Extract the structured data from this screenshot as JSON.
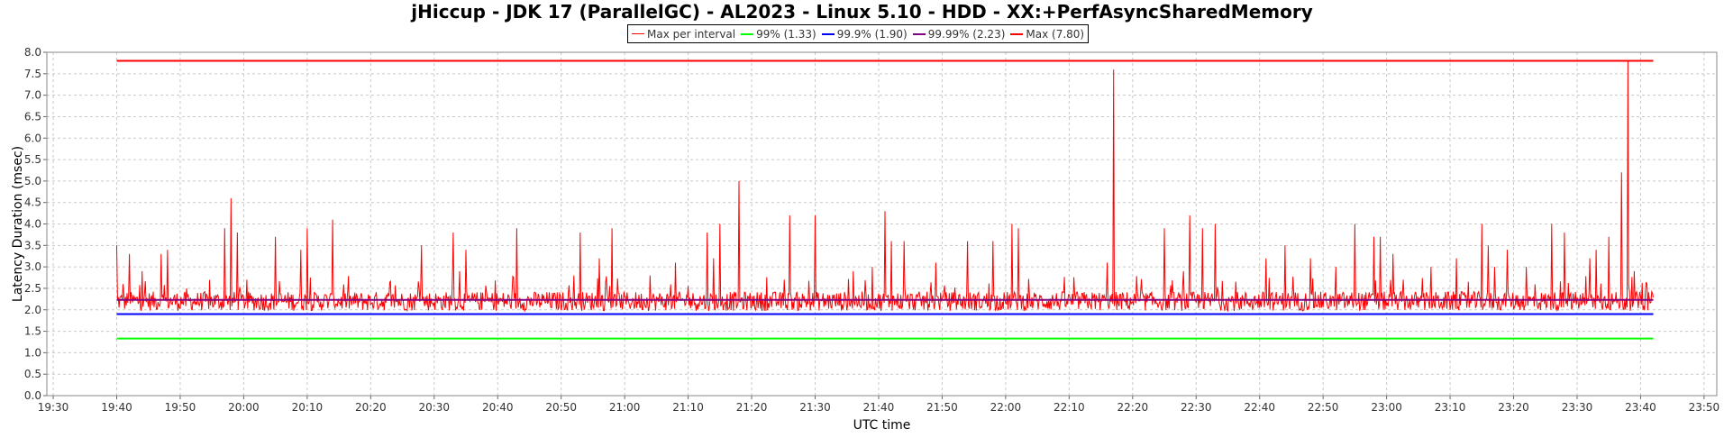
{
  "chart_data": {
    "type": "line",
    "title": "jHiccup - JDK 17 (ParallelGC) - AL2023 - Linux 5.10 - HDD - XX:+PerfAsyncSharedMemory",
    "xlabel": "UTC time",
    "ylabel": "Latency Duration (msec)",
    "ylim": [
      0,
      8.0
    ],
    "xlim": [
      "19:29",
      "23:52"
    ],
    "y_ticks": [
      "0.0",
      "0.5",
      "1.0",
      "1.5",
      "2.0",
      "2.5",
      "3.0",
      "3.5",
      "4.0",
      "4.5",
      "5.0",
      "5.5",
      "6.0",
      "6.5",
      "7.0",
      "7.5",
      "8.0"
    ],
    "x_ticks": [
      "19:30",
      "19:40",
      "19:50",
      "20:00",
      "20:10",
      "20:20",
      "20:30",
      "20:40",
      "20:50",
      "21:00",
      "21:10",
      "21:20",
      "21:30",
      "21:40",
      "21:50",
      "22:00",
      "22:10",
      "22:20",
      "22:30",
      "22:40",
      "22:50",
      "23:00",
      "23:10",
      "23:20",
      "23:30",
      "23:40",
      "23:50"
    ],
    "grid": true,
    "legend_placement": "top-center",
    "series": [
      {
        "name": "Max per interval",
        "color": "#ff0000",
        "baseline": 2.2,
        "start": "19:40",
        "end": "23:42",
        "spikes": [
          [
            "19:40",
            3.5
          ],
          [
            "19:41",
            2.6
          ],
          [
            "19:42",
            3.3
          ],
          [
            "19:44",
            2.9
          ],
          [
            "19:47",
            3.3
          ],
          [
            "19:48",
            3.4
          ],
          [
            "19:51",
            2.5
          ],
          [
            "19:57",
            3.9
          ],
          [
            "19:58",
            4.6
          ],
          [
            "19:59",
            3.8
          ],
          [
            "20:05",
            3.7
          ],
          [
            "20:09",
            3.4
          ],
          [
            "20:10",
            3.9
          ],
          [
            "20:14",
            4.1
          ],
          [
            "20:28",
            3.5
          ],
          [
            "20:33",
            3.8
          ],
          [
            "20:34",
            2.9
          ],
          [
            "20:35",
            3.4
          ],
          [
            "20:43",
            3.9
          ],
          [
            "20:52",
            2.8
          ],
          [
            "20:53",
            3.8
          ],
          [
            "20:56",
            3.2
          ],
          [
            "20:58",
            3.9
          ],
          [
            "21:04",
            2.8
          ],
          [
            "21:08",
            3.1
          ],
          [
            "21:13",
            3.8
          ],
          [
            "21:14",
            3.2
          ],
          [
            "21:15",
            4.0
          ],
          [
            "21:18",
            5.0
          ],
          [
            "21:26",
            4.2
          ],
          [
            "21:30",
            4.2
          ],
          [
            "21:36",
            2.9
          ],
          [
            "21:39",
            3.0
          ],
          [
            "21:41",
            4.3
          ],
          [
            "21:42",
            3.6
          ],
          [
            "21:44",
            3.6
          ],
          [
            "21:49",
            3.1
          ],
          [
            "21:54",
            3.6
          ],
          [
            "21:58",
            3.6
          ],
          [
            "22:01",
            4.0
          ],
          [
            "22:02",
            3.9
          ],
          [
            "22:16",
            3.1
          ],
          [
            "22:17",
            7.6
          ],
          [
            "22:25",
            3.9
          ],
          [
            "22:28",
            2.9
          ],
          [
            "22:29",
            4.2
          ],
          [
            "22:31",
            3.9
          ],
          [
            "22:33",
            4.0
          ],
          [
            "22:41",
            3.2
          ],
          [
            "22:44",
            3.5
          ],
          [
            "22:48",
            3.2
          ],
          [
            "22:52",
            3.0
          ],
          [
            "22:55",
            4.0
          ],
          [
            "22:58",
            3.7
          ],
          [
            "22:59",
            3.7
          ],
          [
            "23:01",
            3.3
          ],
          [
            "23:07",
            3.0
          ],
          [
            "23:11",
            3.2
          ],
          [
            "23:15",
            4.0
          ],
          [
            "23:16",
            3.5
          ],
          [
            "23:17",
            3.0
          ],
          [
            "23:19",
            3.4
          ],
          [
            "23:22",
            3.0
          ],
          [
            "23:26",
            4.0
          ],
          [
            "23:28",
            3.8
          ],
          [
            "23:32",
            3.2
          ],
          [
            "23:33",
            3.4
          ],
          [
            "23:35",
            3.7
          ],
          [
            "23:37",
            5.2
          ],
          [
            "23:38",
            3.9
          ],
          [
            "23:38",
            7.8
          ],
          [
            "23:39",
            2.9
          ],
          [
            "23:41",
            2.6
          ]
        ]
      },
      {
        "name": "99% (1.33)",
        "color": "#00ff00",
        "value": 1.33,
        "start": "19:40",
        "end": "23:42"
      },
      {
        "name": "99.9% (1.90)",
        "color": "#0000ff",
        "value": 1.9,
        "start": "19:40",
        "end": "23:42"
      },
      {
        "name": "99.99% (2.23)",
        "color": "#800080",
        "value": 2.23,
        "start": "19:40",
        "end": "23:42"
      },
      {
        "name": "Max (7.80)",
        "color": "#ff0000",
        "value": 7.8,
        "start": "19:40",
        "end": "23:42"
      }
    ]
  }
}
